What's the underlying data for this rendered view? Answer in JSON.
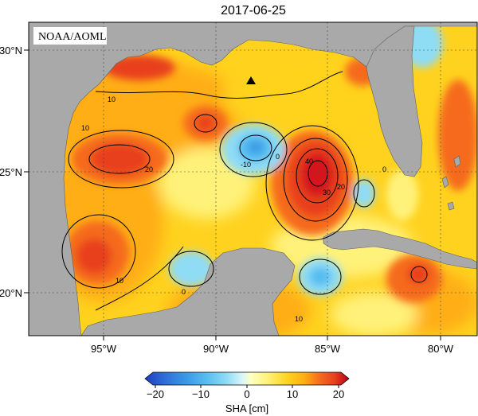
{
  "title": "2017-06-25",
  "watermark": "NOAA/AOML",
  "lat_ticks": [
    {
      "label": "30°N",
      "lat": 30
    },
    {
      "label": "25°N",
      "lat": 25
    },
    {
      "label": "20°N",
      "lat": 20
    }
  ],
  "lon_ticks": [
    {
      "label": "95°W",
      "lon": -95
    },
    {
      "label": "90°W",
      "lon": -90
    },
    {
      "label": "85°W",
      "lon": -85
    },
    {
      "label": "80°W",
      "lon": -80
    }
  ],
  "colorbar": {
    "label": "SHA [cm]",
    "ticks": [
      "−20",
      "−10",
      "0",
      "10",
      "20"
    ],
    "min": -25,
    "max": 25,
    "colors": [
      "#1c3fbf",
      "#2f6fd8",
      "#3a98e6",
      "#55bdf0",
      "#8fdcf5",
      "#c8f0f8",
      "#ffffd0",
      "#fff27a",
      "#ffd21f",
      "#ffae14",
      "#ff8a1a",
      "#f56a1e",
      "#e8401e",
      "#d4181e",
      "#b30018"
    ]
  },
  "contour_labels": [
    "-10",
    "0",
    "10",
    "20",
    "30",
    "40"
  ],
  "features": {
    "marker": "black-triangle"
  },
  "map_data": {
    "projection": "equirectangular",
    "lon_range": [
      -98,
      -78.5
    ],
    "lat_range": [
      18.2,
      31
    ],
    "field": "sea surface height anomaly (cm)",
    "anomalies": [
      {
        "lon": -85.2,
        "lat": 24.9,
        "value": 42,
        "sign": "positive"
      },
      {
        "lon": -94.5,
        "lat": 25.5,
        "value": 22,
        "sign": "positive"
      },
      {
        "lon": -95.3,
        "lat": 21.6,
        "value": 21,
        "sign": "positive"
      },
      {
        "lon": -90.5,
        "lat": 27.1,
        "value": 18,
        "sign": "positive"
      },
      {
        "lon": -93.5,
        "lat": 29.5,
        "value": 18,
        "sign": "positive"
      },
      {
        "lon": -80.6,
        "lat": 19.8,
        "value": 16,
        "sign": "positive"
      },
      {
        "lon": -87.7,
        "lat": 26.0,
        "value": -12,
        "sign": "negative"
      },
      {
        "lon": -90.1,
        "lat": 20.8,
        "value": -6,
        "sign": "negative"
      },
      {
        "lon": -85.1,
        "lat": 20.5,
        "value": -6,
        "sign": "negative"
      },
      {
        "lon": -83.6,
        "lat": 24.1,
        "value": -4,
        "sign": "negative"
      },
      {
        "lon": -80.3,
        "lat": 29.6,
        "value": -4,
        "sign": "negative"
      }
    ]
  }
}
